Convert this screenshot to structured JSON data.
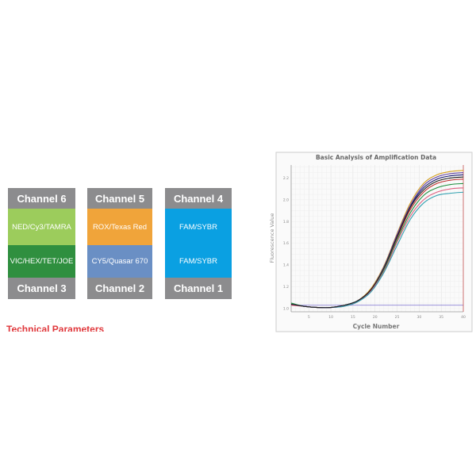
{
  "channels": {
    "headers_top": [
      "Channel 6",
      "Channel 5",
      "Channel 4"
    ],
    "row1": [
      "NED/Cy3/TAMRA",
      "ROX/Texas Red",
      "FAM/SYBR"
    ],
    "row2": [
      "VIC/HEX/TET/JOE",
      "CY5/Quasar 670",
      "FAM/SYBR"
    ],
    "headers_bottom": [
      "Channel 3",
      "Channel 2",
      "Channel 1"
    ],
    "colors": {
      "header": "#8c8c8e",
      "ned": "#9ccc5c",
      "rox": "#f0a43a",
      "fam": "#0aa0e2",
      "vic": "#2f8f3f",
      "cy5": "#6a8fc4"
    }
  },
  "section_heading": "Technical Parameters",
  "chart_data": {
    "type": "line",
    "title": "Basic Analysis of Amplification Data",
    "xlabel": "Cycle Number",
    "ylabel": "Fluorescence Value",
    "xlim": [
      1,
      40
    ],
    "ylim": [
      0.97,
      2.32
    ],
    "xticks": [
      5,
      10,
      15,
      20,
      25,
      30,
      35,
      40
    ],
    "yticks": [
      "1.0",
      "1.2",
      "1.4",
      "1.6",
      "1.8",
      "2.0",
      "2.2"
    ],
    "grid": true,
    "threshold": 1.03,
    "threshold_color": "#7a6fd0",
    "x": [
      1,
      4,
      7,
      10,
      13,
      16,
      19,
      22,
      25,
      28,
      31,
      34,
      37,
      40
    ],
    "series": [
      {
        "color": "#d4a020",
        "values": [
          1.04,
          1.02,
          1.01,
          1.01,
          1.03,
          1.07,
          1.18,
          1.39,
          1.69,
          1.97,
          2.15,
          2.23,
          2.26,
          2.27
        ]
      },
      {
        "color": "#1a1a6e",
        "values": [
          1.04,
          1.02,
          1.01,
          1.01,
          1.03,
          1.07,
          1.17,
          1.38,
          1.67,
          1.94,
          2.11,
          2.19,
          2.22,
          2.23
        ]
      },
      {
        "color": "#c03030",
        "values": [
          1.04,
          1.02,
          1.01,
          1.01,
          1.03,
          1.07,
          1.17,
          1.37,
          1.65,
          1.91,
          2.07,
          2.15,
          2.18,
          2.19
        ]
      },
      {
        "color": "#209040",
        "values": [
          1.05,
          1.02,
          1.01,
          1.01,
          1.03,
          1.07,
          1.16,
          1.35,
          1.63,
          1.88,
          2.04,
          2.11,
          2.14,
          2.15
        ]
      },
      {
        "color": "#e06080",
        "values": [
          1.03,
          1.02,
          1.01,
          1.01,
          1.02,
          1.06,
          1.16,
          1.34,
          1.61,
          1.85,
          2.0,
          2.07,
          2.1,
          2.11
        ]
      },
      {
        "color": "#30a0b0",
        "values": [
          1.04,
          1.02,
          1.01,
          1.01,
          1.02,
          1.06,
          1.15,
          1.33,
          1.58,
          1.82,
          1.97,
          2.04,
          2.06,
          2.07
        ]
      },
      {
        "color": "#6040a0",
        "values": [
          1.04,
          1.02,
          1.01,
          1.01,
          1.03,
          1.07,
          1.17,
          1.38,
          1.68,
          1.95,
          2.13,
          2.21,
          2.24,
          2.25
        ]
      },
      {
        "color": "#202020",
        "values": [
          1.04,
          1.02,
          1.01,
          1.01,
          1.03,
          1.07,
          1.17,
          1.37,
          1.66,
          1.93,
          2.09,
          2.17,
          2.2,
          2.21
        ]
      }
    ]
  }
}
